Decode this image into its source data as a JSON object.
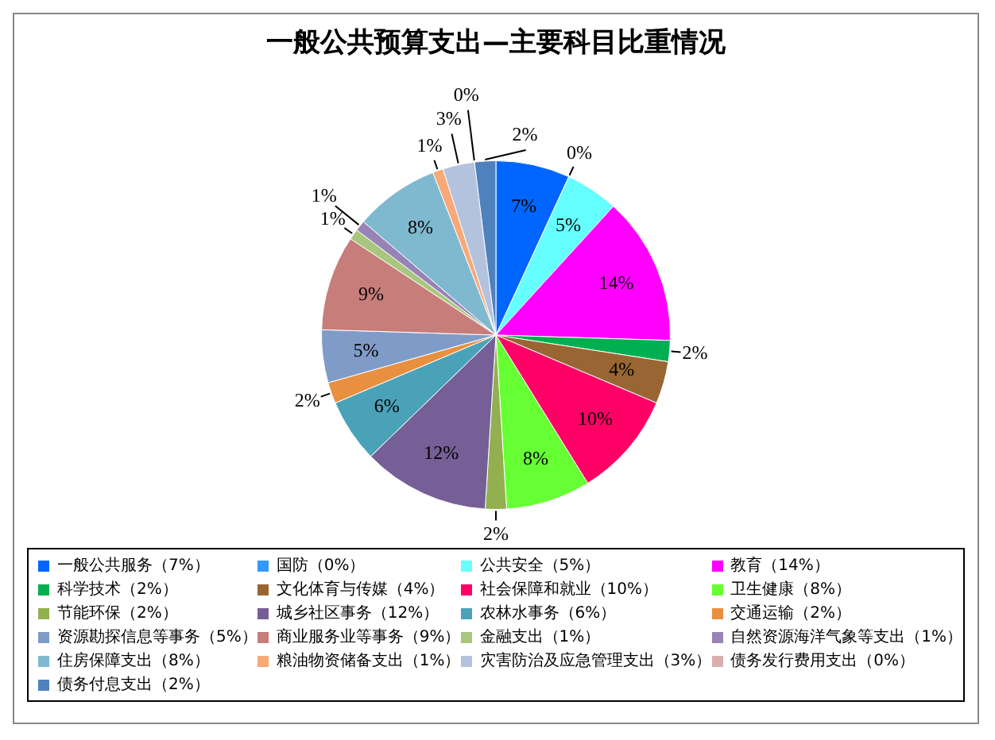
{
  "chart_data": {
    "type": "pie",
    "title": "一般公共预算支出—主要科目比重情况",
    "categories": [
      "一般公共服务（7%）",
      "国防（0%）",
      "公共安全（5%）",
      "教育（14%）",
      "科学技术（2%）",
      "文化体育与传媒（4%）",
      "社会保障和就业（10%）",
      "卫生健康（8%）",
      "节能环保（2%）",
      "城乡社区事务（12%）",
      "农林水事务（6%）",
      "交通运输（2%）",
      "资源勘探信息等事务（5%）",
      "商业服务业等事务（9%）",
      "金融支出（1%）",
      "自然资源海洋气象等支出（1%）",
      "住房保障支出（8%）",
      "粮油物资储备支出（1%）",
      "灾害防治及应急管理支出（3%）",
      "债务发行费用支出（0%）",
      "债务付息支出（2%）"
    ],
    "values": [
      7,
      0,
      5,
      14,
      2,
      4,
      10,
      8,
      2,
      12,
      6,
      2,
      5,
      9,
      1,
      1,
      8,
      1,
      3,
      0,
      2
    ],
    "value_labels": [
      "7%",
      "0%",
      "5%",
      "14%",
      "2%",
      "4%",
      "10%",
      "8%",
      "2%",
      "12%",
      "6%",
      "2%",
      "5%",
      "9%",
      "1%",
      "1%",
      "8%",
      "1%",
      "3%",
      "0%",
      "2%"
    ],
    "colors": [
      "#0066ff",
      "#3399ff",
      "#66ffff",
      "#ff00ff",
      "#00b050",
      "#996633",
      "#ff0066",
      "#66ff33",
      "#92b050",
      "#765e96",
      "#4aa2b8",
      "#e8903f",
      "#7f9cc8",
      "#c77d7a",
      "#a9c67e",
      "#9883b6",
      "#7fb9cf",
      "#f9a877",
      "#b3c3de",
      "#d9b0b0",
      "#4f81bd"
    ],
    "legend": "bottom"
  }
}
